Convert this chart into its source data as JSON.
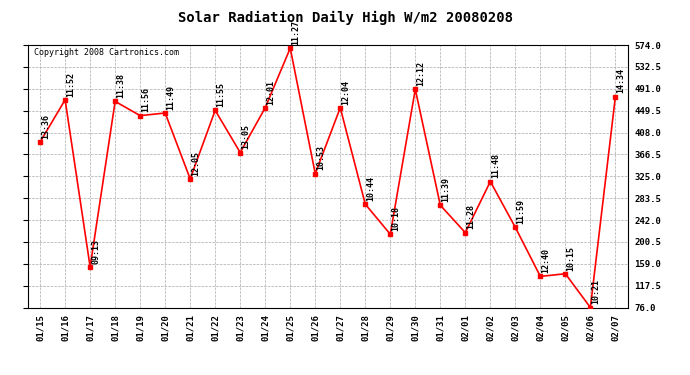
{
  "title": "Solar Radiation Daily High W/m2 20080208",
  "copyright": "Copyright 2008 Cartronics.com",
  "dates": [
    "01/15",
    "01/16",
    "01/17",
    "01/18",
    "01/19",
    "01/20",
    "01/21",
    "01/22",
    "01/23",
    "01/24",
    "01/25",
    "01/26",
    "01/27",
    "01/28",
    "01/29",
    "01/30",
    "01/31",
    "02/01",
    "02/02",
    "02/03",
    "02/04",
    "02/05",
    "02/06",
    "02/07"
  ],
  "values": [
    390,
    470,
    153,
    467,
    440,
    445,
    320,
    450,
    370,
    455,
    568,
    330,
    455,
    272,
    215,
    490,
    270,
    218,
    315,
    228,
    135,
    140,
    76,
    476
  ],
  "labels": [
    "13:36",
    "11:52",
    "09:13",
    "11:38",
    "11:56",
    "11:49",
    "12:05",
    "11:55",
    "13:05",
    "12:01",
    "11:27",
    "10:53",
    "12:04",
    "10:44",
    "10:18",
    "12:12",
    "11:39",
    "11:28",
    "11:48",
    "11:59",
    "12:40",
    "10:15",
    "10:21",
    "14:34"
  ],
  "line_color": "#ff0000",
  "marker_color": "#ff0000",
  "background_color": "#ffffff",
  "grid_color": "#aaaaaa",
  "text_color": "#000000",
  "ymin": 76.0,
  "ymax": 574.0,
  "yticks": [
    76.0,
    117.5,
    159.0,
    200.5,
    242.0,
    283.5,
    325.0,
    366.5,
    408.0,
    449.5,
    491.0,
    532.5,
    574.0
  ],
  "title_fontsize": 10,
  "label_fontsize": 6,
  "tick_fontsize": 6.5,
  "copyright_fontsize": 6
}
